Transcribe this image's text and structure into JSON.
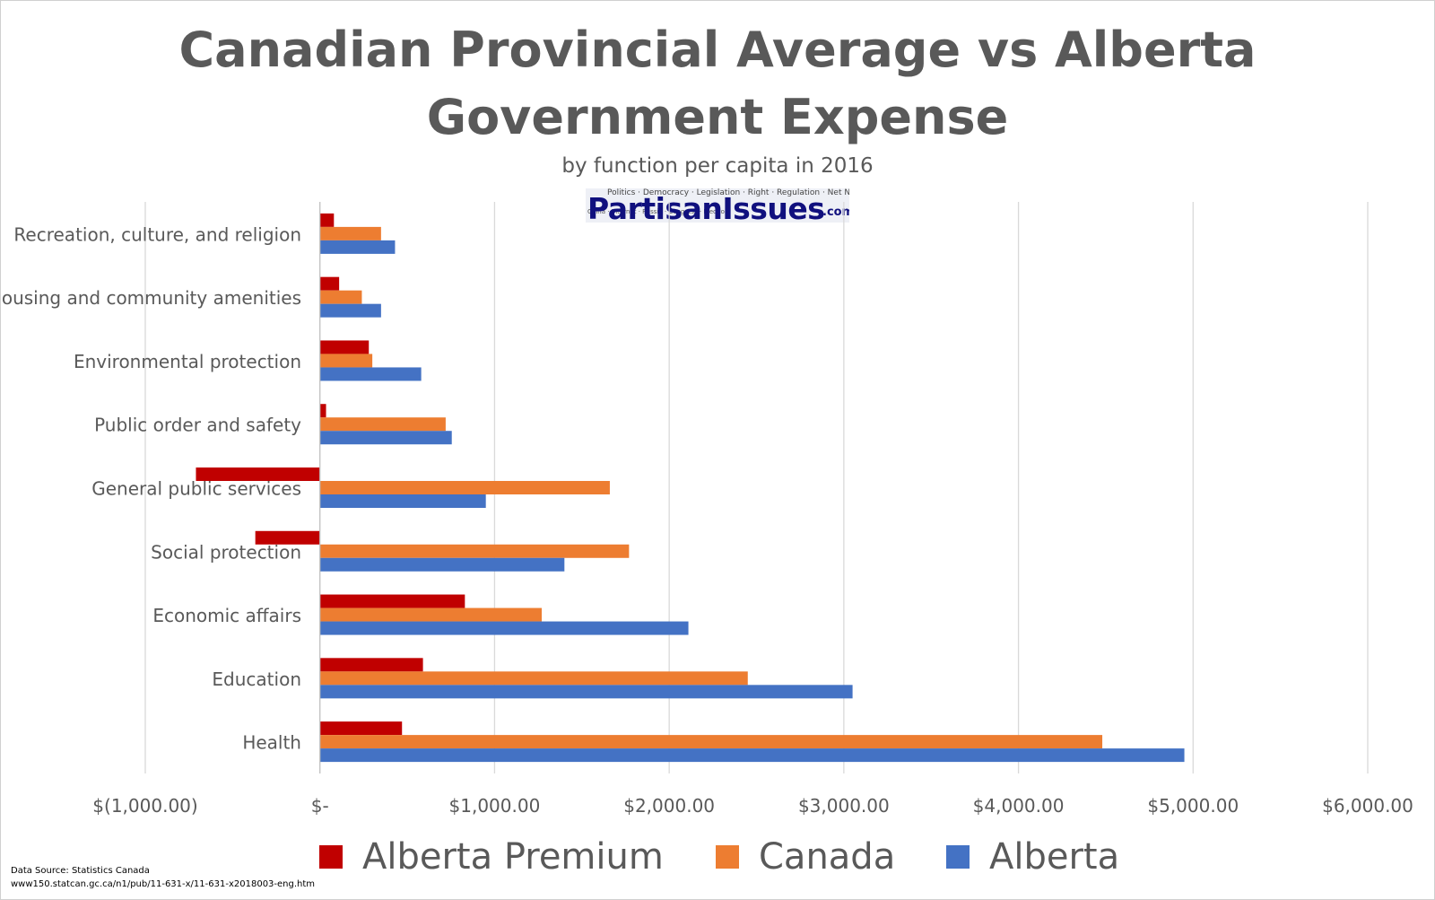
{
  "title_line1": "Canadian Provincial Average vs Alberta",
  "title_line2": "Government Expense",
  "subtitle": "by function per capita in 2016",
  "logo": {
    "brand": "PartisanIssues",
    "suffix": ".com",
    "words": "Politics · Democracy · Legislation · Right · Regulation · Net Neutrality",
    "words2": "China · Internet · Russia · Congress · Election"
  },
  "source": {
    "line1": "Data Source: Statistics Canada",
    "line2": "www150.statcan.gc.ca/n1/pub/11-631-x/11-631-x2018003-eng.htm"
  },
  "chart_data": {
    "type": "bar",
    "orientation": "horizontal",
    "title": "Canadian Provincial Average vs Alberta Government Expense",
    "subtitle": "by function per capita in 2016",
    "categories": [
      "Recreation, culture, and religion",
      "Housing and community amenities",
      "Environmental protection",
      "Public order and safety",
      "General public services",
      "Social protection",
      "Economic affairs",
      "Education",
      "Health"
    ],
    "series": [
      {
        "name": "Alberta Premium",
        "color": "#c00000",
        "values": [
          80,
          110,
          280,
          35,
          -710,
          -370,
          830,
          590,
          470
        ]
      },
      {
        "name": "Canada",
        "color": "#ed7d31",
        "values": [
          350,
          240,
          300,
          720,
          1660,
          1770,
          1270,
          2450,
          4480
        ]
      },
      {
        "name": "Alberta",
        "color": "#4472c4",
        "values": [
          430,
          350,
          580,
          755,
          950,
          1400,
          2110,
          3050,
          4950
        ]
      }
    ],
    "xlim": [
      -1000,
      6000
    ],
    "x_ticks": [
      -1000,
      0,
      1000,
      2000,
      3000,
      4000,
      5000,
      6000
    ],
    "x_tick_labels": [
      "$(1,000.00)",
      "$-",
      "$1,000.00",
      "$2,000.00",
      "$3,000.00",
      "$4,000.00",
      "$5,000.00",
      "$6,000.00"
    ],
    "grid": true,
    "legend_position": "bottom"
  }
}
